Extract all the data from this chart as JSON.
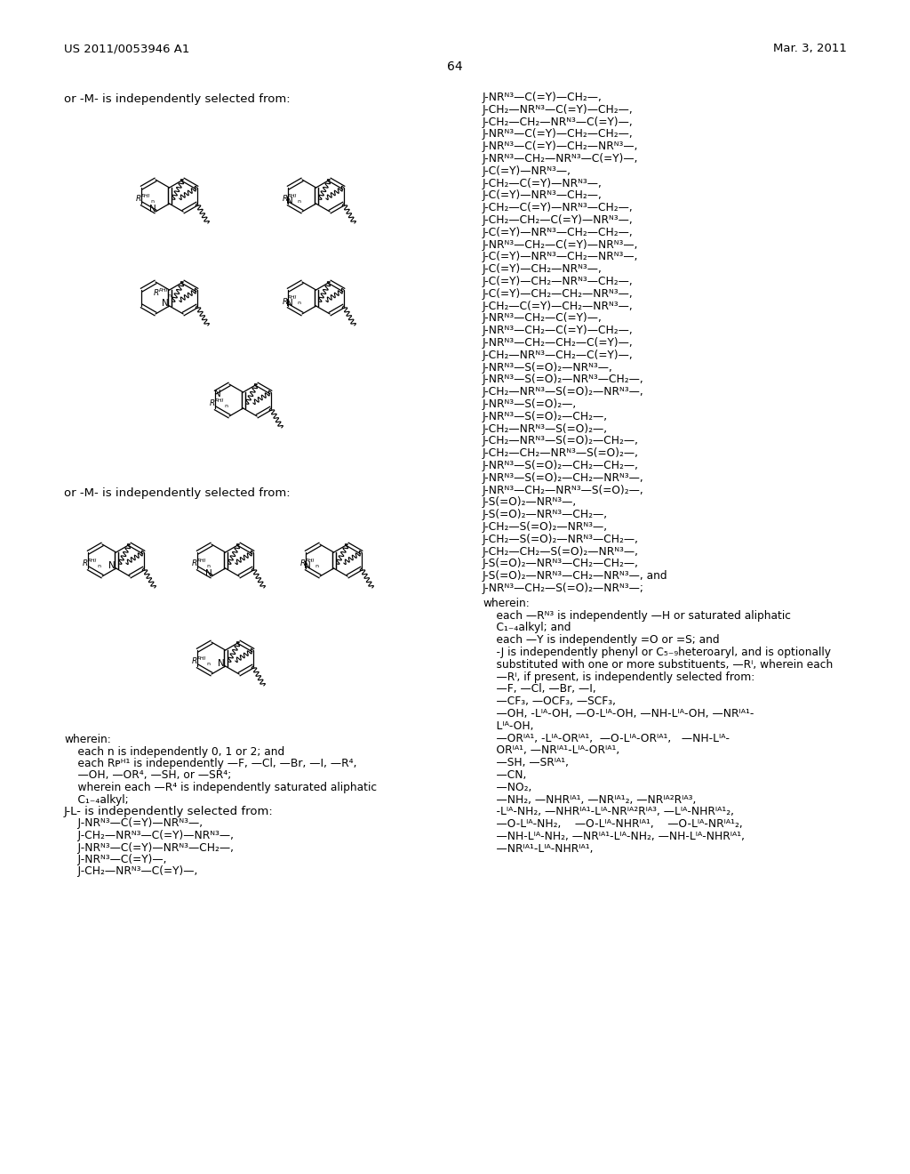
{
  "title_left": "US 2011/0053946 A1",
  "title_right": "Mar. 3, 2011",
  "page_number": "64",
  "right_col_lines": [
    "J-NRᴺ³—C(=Y)—CH₂—,",
    "J-CH₂—NRᴺ³—C(=Y)—CH₂—,",
    "J-CH₂—CH₂—NRᴺ³—C(=Y)—,",
    "J-NRᴺ³—C(=Y)—CH₂—CH₂—,",
    "J-NRᴺ³—C(=Y)—CH₂—NRᴺ³—,",
    "J-NRᴺ³—CH₂—NRᴺ³—C(=Y)—,",
    "J-C(=Y)—NRᴺ³—,",
    "J-CH₂—C(=Y)—NRᴺ³—,",
    "J-C(=Y)—NRᴺ³—CH₂—,",
    "J-CH₂—C(=Y)—NRᴺ³—CH₂—,",
    "J-CH₂—CH₂—C(=Y)—NRᴺ³—,",
    "J-C(=Y)—NRᴺ³—CH₂—CH₂—,",
    "J-NRᴺ³—CH₂—C(=Y)—NRᴺ³—,",
    "J-C(=Y)—NRᴺ³—CH₂—NRᴺ³—,",
    "J-C(=Y)—CH₂—NRᴺ³—,",
    "J-C(=Y)—CH₂—NRᴺ³—CH₂—,",
    "J-C(=Y)—CH₂—CH₂—NRᴺ³—,",
    "J-CH₂—C(=Y)—CH₂—NRᴺ³—,",
    "J-NRᴺ³—CH₂—C(=Y)—,",
    "J-NRᴺ³—CH₂—C(=Y)—CH₂—,",
    "J-NRᴺ³—CH₂—CH₂—C(=Y)—,",
    "J-CH₂—NRᴺ³—CH₂—C(=Y)—,",
    "J-NRᴺ³—S(=O)₂—NRᴺ³—,",
    "J-NRᴺ³—S(=O)₂—NRᴺ³—CH₂—,",
    "J-CH₂—NRᴺ³—S(=O)₂—NRᴺ³—,",
    "J-NRᴺ³—S(=O)₂—,",
    "J-NRᴺ³—S(=O)₂—CH₂—,",
    "J-CH₂—NRᴺ³—S(=O)₂—,",
    "J-CH₂—NRᴺ³—S(=O)₂—CH₂—,",
    "J-CH₂—CH₂—NRᴺ³—S(=O)₂—,",
    "J-NRᴺ³—S(=O)₂—CH₂—CH₂—,",
    "J-NRᴺ³—S(=O)₂—CH₂—NRᴺ³—,",
    "J-NRᴺ³—CH₂—NRᴺ³—S(=O)₂—,",
    "J-S(=O)₂—NRᴺ³—,",
    "J-S(=O)₂—NRᴺ³—CH₂—,",
    "J-CH₂—S(=O)₂—NRᴺ³—,",
    "J-CH₂—S(=O)₂—NRᴺ³—CH₂—,",
    "J-CH₂—CH₂—S(=O)₂—NRᴺ³—,",
    "J-S(=O)₂—NRᴺ³—CH₂—CH₂—,",
    "J-S(=O)₂—NRᴺ³—CH₂—NRᴺ³—, and",
    "J-NRᴺ³—CH₂—S(=O)₂—NRᴺ³—;"
  ],
  "left_bottom_lines": [
    "wherein:",
    "    each n is independently 0, 1 or 2; and",
    "    each Rᴘᴴ¹ is independently —F, —Cl, —Br, —I, —R⁴,",
    "    —OH, —OR⁴, —SH, or —SR⁴;",
    "    wherein each —R⁴ is independently saturated aliphatic",
    "    C₁₋₄alkyl;",
    "J-L- is independently selected from:",
    "    J-NRᴺ³—C(=Y)—NRᴺ³—,",
    "    J-CH₂—NRᴺ³—C(=Y)—NRᴺ³—,",
    "    J-NRᴺ³—C(=Y)—NRᴺ³—CH₂—,",
    "    J-NRᴺ³—C(=Y)—,",
    "    J-CH₂—NRᴺ³—C(=Y)—,"
  ],
  "right_bottom_lines": [
    "wherein:",
    "    each —Rᴺ³ is independently —H or saturated aliphatic",
    "    C₁₋₄alkyl; and",
    "    each —Y is independently =O or =S; and",
    "    -J is independently phenyl or C₅₋₉heteroaryl, and is optionally",
    "    substituted with one or more substituents, —Rⁱ, wherein each",
    "    —Rⁱ, if present, is independently selected from:",
    "    —F, —Cl, —Br, —I,",
    "    —CF₃, —OCF₃, —SCF₃,",
    "    —OH, -Lᴵᴬ-OH, —O-Lᴵᴬ-OH, —NH-Lᴵᴬ-OH, —NRᴵᴬ¹-",
    "    Lᴵᴬ-OH,",
    "    —ORᴵᴬ¹, -Lᴵᴬ-ORᴵᴬ¹,  —O-Lᴵᴬ-ORᴵᴬ¹,   —NH-Lᴵᴬ-",
    "    ORᴵᴬ¹, —NRᴵᴬ¹-Lᴵᴬ-ORᴵᴬ¹,",
    "    —SH, —SRᴵᴬ¹,",
    "    —CN,",
    "    —NO₂,",
    "    —NH₂, —NHRᴵᴬ¹, —NRᴵᴬ¹₂, —NRᴵᴬ²Rᴵᴬ³,",
    "    -Lᴵᴬ-NH₂, —NHRᴵᴬ¹-Lᴵᴬ-NRᴵᴬ²Rᴵᴬ³, —Lᴵᴬ-NHRᴵᴬ¹₂,",
    "    —O-Lᴵᴬ-NH₂,    —O-Lᴵᴬ-NHRᴵᴬ¹,    —O-Lᴵᴬ-NRᴵᴬ¹₂,",
    "    —NH-Lᴵᴬ-NH₂, —NRᴵᴬ¹-Lᴵᴬ-NH₂, —NH-Lᴵᴬ-NHRᴵᴬ¹,",
    "    —NRᴵᴬ¹-Lᴵᴬ-NHRᴵᴬ¹,"
  ]
}
